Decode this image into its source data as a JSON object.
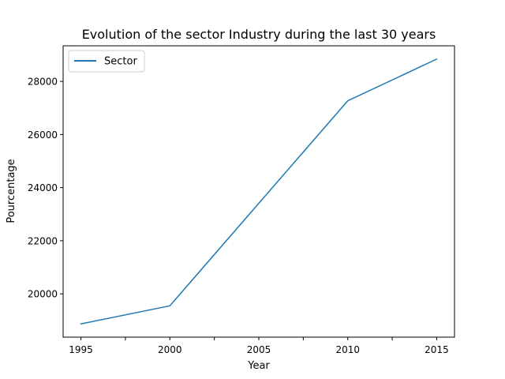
{
  "chart_data": {
    "type": "line",
    "title": "Evolution of the sector Industry during the last 30 years",
    "xlabel": "Year",
    "ylabel": "Pourcentage",
    "x": [
      1995,
      2000,
      2010,
      2015
    ],
    "series": [
      {
        "name": "Sector",
        "color": "#1f77b4",
        "values": [
          18870,
          19550,
          27270,
          28840
        ]
      }
    ],
    "xlim": [
      1994,
      2016
    ],
    "ylim": [
      18370,
      29340
    ],
    "x_major_ticks": [
      1995,
      2000,
      2005,
      2010,
      2015
    ],
    "x_tick_labels": [
      "1995",
      "2000",
      "2005",
      "2010",
      "2015"
    ],
    "x_minor_ticks": [
      1997.5,
      2002.5,
      2007.5,
      2012.5
    ],
    "y_ticks": [
      20000,
      22000,
      24000,
      26000,
      28000
    ],
    "y_tick_labels": [
      "20000",
      "22000",
      "24000",
      "26000",
      "28000"
    ],
    "grid": false,
    "legend_position": "top-left"
  }
}
